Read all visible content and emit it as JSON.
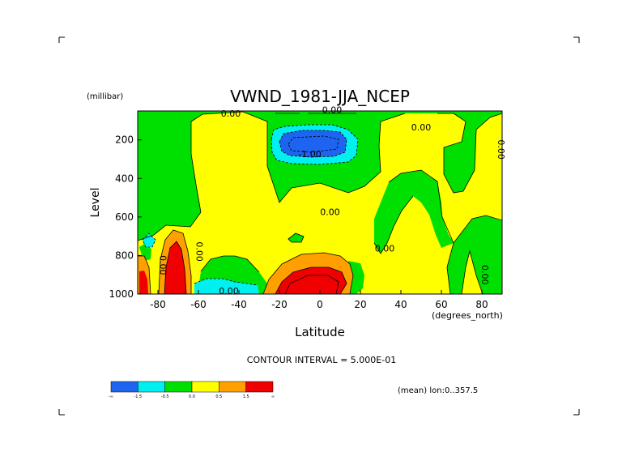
{
  "chart_data": {
    "type": "heatmap",
    "title": "VWND_1981-JJA_NCEP",
    "ylabel": "Level",
    "yunits": "(millibar)",
    "xlabel": "Latitude",
    "xunits": "(degrees_north)",
    "xlim": [
      -90,
      90
    ],
    "ylim": [
      1000,
      50
    ],
    "y_inverted": true,
    "xticks": [
      "-80",
      "-60",
      "-40",
      "-20",
      "0",
      "20",
      "40",
      "60",
      "80"
    ],
    "yticks": [
      "200",
      "400",
      "600",
      "800",
      "1000"
    ],
    "contour_interval_text": "CONTOUR INTERVAL = 5.000E-01",
    "mean_text": "(mean) lon:0..357.5",
    "contour_labels": [
      {
        "text": "0.00",
        "x": 6,
        "y": 60
      },
      {
        "text": "0.00",
        "x": -44,
        "y": 80
      },
      {
        "text": "0.00",
        "x": 50,
        "y": 150
      },
      {
        "text": "-1.00",
        "x": -5,
        "y": 290
      },
      {
        "text": "0.00",
        "x": 5,
        "y": 590
      },
      {
        "text": "0.00",
        "x": 32,
        "y": 780
      },
      {
        "text": "0.00",
        "x": -61,
        "y": 780
      },
      {
        "text": "0.00",
        "x": -79,
        "y": 850
      },
      {
        "text": "0.00",
        "x": 80,
        "y": 900
      },
      {
        "text": "0.00",
        "x": 88,
        "y": 250
      },
      {
        "text": "0.00",
        "x": -45,
        "y": 1000
      }
    ],
    "color_levels": {
      "bins": [
        "-∞",
        "-1.5",
        "-0.5",
        "0.0",
        "0.5",
        "1.5",
        "∞"
      ],
      "tick_labels": [
        "-∞",
        "-1.5",
        "-0.5",
        "0.0",
        "0.5",
        "1.5",
        "∞"
      ],
      "colors": [
        "#1e64f0",
        "#00f0f0",
        "#00e000",
        "#ffff00",
        "#ffa000",
        "#f00000"
      ]
    },
    "regions": [
      {
        "level": "green",
        "desc": "background v between -0.5 and 0"
      },
      {
        "level": "yellow",
        "desc": "band 0 to 0.5 across tropics and subtropics"
      },
      {
        "level": "blue",
        "center": [
          -5,
          200
        ],
        "desc": "upper-level minimum below -1.5"
      },
      {
        "level": "red",
        "center": [
          -5,
          950
        ],
        "desc": "low-level maximum above 1.5"
      },
      {
        "level": "red",
        "center": [
          -75,
          900
        ],
        "desc": "polar low-level maximum above 1.5"
      },
      {
        "level": "cyan",
        "center": [
          -40,
          970
        ],
        "desc": "near-surface -1.0 region"
      }
    ]
  },
  "colors": {
    "green": "#00e000",
    "yellow": "#ffff00",
    "cyan": "#00f0f0",
    "blue": "#1e64f0",
    "orange": "#ffa000",
    "red": "#f00000"
  }
}
